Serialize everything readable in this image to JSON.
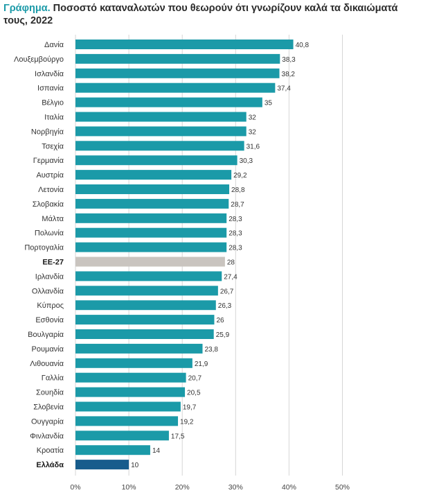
{
  "header": {
    "title_prefix": "Γράφημα.",
    "title_text": " Ποσοστό καταναλωτών που θεωρούν ότι γνωρίζουν καλά τα δικαιώματά τους, 2022"
  },
  "colors": {
    "bar": "#1b9aa8",
    "eu_bar": "#c9c4bf",
    "greece_bar": "#175c8c",
    "grid": "#d6d6d6",
    "title_accent": "#1b9aa8"
  },
  "chart_data": {
    "type": "bar",
    "orientation": "horizontal",
    "title": "Γράφημα. Ποσοστό καταναλωτών που θεωρούν ότι γνωρίζουν καλά τα δικαιώματά τους, 2022",
    "categories": [
      "Δανία",
      "Λουξεμβούργο",
      "Ισλανδία",
      "Ισπανία",
      "Βέλγιο",
      "Ιταλία",
      "Νορβηγία",
      "Τσεχία",
      "Γερμανία",
      "Αυστρία",
      "Λετονία",
      "Σλοβακία",
      "Μάλτα",
      "Πολωνία",
      "Πορτογαλία",
      "ΕΕ-27",
      "Ιρλανδία",
      "Ολλανδία",
      "Κύπρος",
      "Εσθονία",
      "Βουλγαρία",
      "Ρουμανία",
      "Λιθουανία",
      "Γαλλία",
      "Σουηδία",
      "Σλοβενία",
      "Ουγγαρία",
      "Φινλανδία",
      "Κροατία",
      "Ελλάδα"
    ],
    "values": [
      40.8,
      38.3,
      38.2,
      37.4,
      35,
      32,
      32,
      31.6,
      30.3,
      29.2,
      28.8,
      28.7,
      28.3,
      28.3,
      28.3,
      28,
      27.4,
      26.7,
      26.3,
      26,
      25.9,
      23.8,
      21.9,
      20.7,
      20.5,
      19.7,
      19.2,
      17.5,
      14,
      10
    ],
    "value_labels": [
      "40,8",
      "38,3",
      "38,2",
      "37,4",
      "35",
      "32",
      "32",
      "31,6",
      "30,3",
      "29,2",
      "28,8",
      "28,7",
      "28,3",
      "28,3",
      "28,3",
      "28",
      "27,4",
      "26,7",
      "26,3",
      "26",
      "25,9",
      "23,8",
      "21,9",
      "20,7",
      "20,5",
      "19,7",
      "19,2",
      "17,5",
      "14",
      "10"
    ],
    "highlight": {
      "ΕΕ-27": "eu",
      "Ελλάδα": "greece"
    },
    "bold_categories": [
      "ΕΕ-27",
      "Ελλάδα"
    ],
    "xlim": [
      0,
      50
    ],
    "x_ticks": [
      0,
      10,
      20,
      30,
      40,
      50
    ],
    "x_tick_labels": [
      "0%",
      "10%",
      "20%",
      "30%",
      "40%",
      "50%"
    ],
    "xlabel": "",
    "ylabel": "",
    "grid": "vertical",
    "legend": "none"
  }
}
